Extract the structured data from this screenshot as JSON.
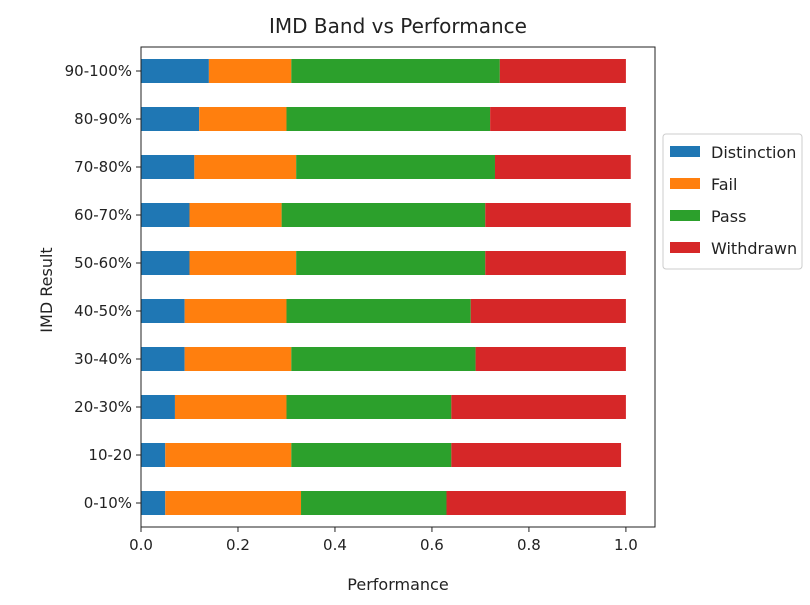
{
  "chart_data": {
    "type": "bar",
    "orientation": "horizontal",
    "stacked": true,
    "title": "IMD Band vs Performance",
    "xlabel": "Performance",
    "ylabel": "IMD Result",
    "xlim": [
      0,
      1.06
    ],
    "xticks": [
      "0.0",
      "0.2",
      "0.4",
      "0.6",
      "0.8",
      "1.0"
    ],
    "grid": false,
    "legend_position": "right",
    "categories": [
      "0-10%",
      "10-20",
      "20-30%",
      "30-40%",
      "40-50%",
      "50-60%",
      "60-70%",
      "70-80%",
      "80-90%",
      "90-100%"
    ],
    "series": [
      {
        "name": "Distinction",
        "color": "#1f77b4",
        "values": [
          0.05,
          0.05,
          0.07,
          0.09,
          0.09,
          0.1,
          0.1,
          0.11,
          0.12,
          0.14
        ]
      },
      {
        "name": "Fail",
        "color": "#ff7f0e",
        "values": [
          0.28,
          0.26,
          0.23,
          0.22,
          0.21,
          0.22,
          0.19,
          0.21,
          0.18,
          0.17
        ]
      },
      {
        "name": "Pass",
        "color": "#2ca02c",
        "values": [
          0.3,
          0.33,
          0.34,
          0.38,
          0.38,
          0.39,
          0.42,
          0.41,
          0.42,
          0.43
        ]
      },
      {
        "name": "Withdrawn",
        "color": "#d62728",
        "values": [
          0.37,
          0.35,
          0.36,
          0.31,
          0.32,
          0.29,
          0.3,
          0.28,
          0.28,
          0.26
        ]
      }
    ]
  }
}
